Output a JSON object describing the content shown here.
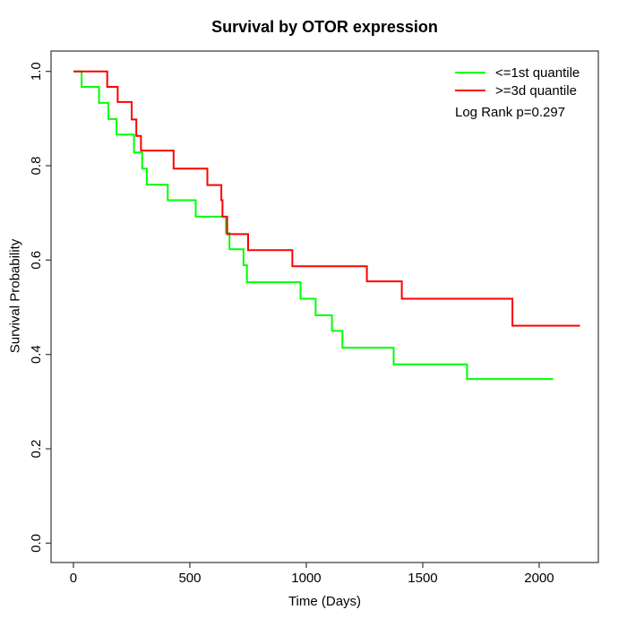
{
  "title": "Survival by OTOR expression",
  "legend": {
    "items": [
      {
        "label": "<=1st quantile",
        "color": "#00FF00"
      },
      {
        "label": ">=3d quantile",
        "color": "#FF0000"
      }
    ],
    "annotation": "Log Rank p=0.297"
  },
  "chart_data": {
    "type": "line",
    "subtype": "kaplan-meier-step",
    "title": "Survival by OTOR expression",
    "xlabel": "Time (Days)",
    "ylabel": "Survival Probability",
    "xlim": [
      -96,
      2254
    ],
    "ylim": [
      -0.041,
      1.043
    ],
    "x_ticks": [
      0,
      500,
      1000,
      1500,
      2000
    ],
    "x_tick_labels": [
      "0",
      "500",
      "1000",
      "1500",
      "2000"
    ],
    "y_ticks": [
      0.0,
      0.2,
      0.4,
      0.6,
      0.8,
      1.0
    ],
    "y_tick_labels": [
      "0.0",
      "0.2",
      "0.4",
      "0.6",
      "0.8",
      "1.0"
    ],
    "grid": false,
    "legend_position": "top-right",
    "log_rank_p": 0.297,
    "series": [
      {
        "name": "<=1st quantile",
        "color": "#00FF00",
        "end_time": 2060,
        "steps": [
          [
            0,
            1.0
          ],
          [
            35,
            0.967
          ],
          [
            110,
            0.933
          ],
          [
            150,
            0.899
          ],
          [
            185,
            0.866
          ],
          [
            260,
            0.828
          ],
          [
            295,
            0.794
          ],
          [
            315,
            0.76
          ],
          [
            405,
            0.727
          ],
          [
            525,
            0.692
          ],
          [
            655,
            0.657
          ],
          [
            670,
            0.623
          ],
          [
            730,
            0.589
          ],
          [
            745,
            0.553
          ],
          [
            975,
            0.518
          ],
          [
            1040,
            0.483
          ],
          [
            1110,
            0.45
          ],
          [
            1155,
            0.414
          ],
          [
            1375,
            0.379
          ],
          [
            1690,
            0.348
          ]
        ]
      },
      {
        "name": ">=3d quantile",
        "color": "#FF0000",
        "end_time": 2175,
        "steps": [
          [
            0,
            1.0
          ],
          [
            145,
            0.967
          ],
          [
            190,
            0.935
          ],
          [
            250,
            0.898
          ],
          [
            270,
            0.863
          ],
          [
            290,
            0.832
          ],
          [
            430,
            0.794
          ],
          [
            575,
            0.759
          ],
          [
            635,
            0.727
          ],
          [
            640,
            0.692
          ],
          [
            660,
            0.655
          ],
          [
            750,
            0.621
          ],
          [
            940,
            0.587
          ],
          [
            1260,
            0.555
          ],
          [
            1410,
            0.518
          ],
          [
            1885,
            0.461
          ]
        ]
      }
    ],
    "axis_color": "#444444",
    "text_color": "#000000"
  }
}
